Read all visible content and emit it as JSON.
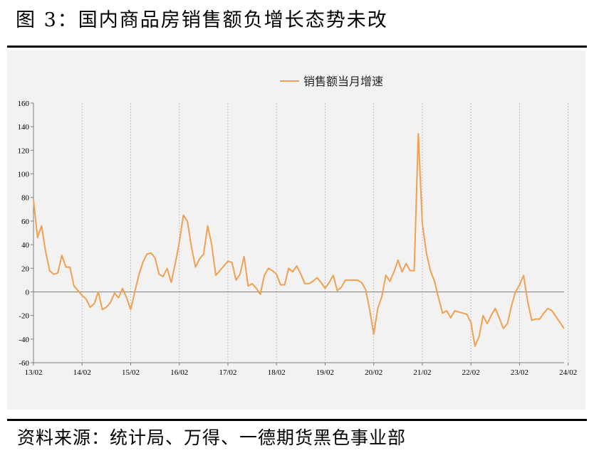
{
  "figure": {
    "title": "图 3：国内商品房销售额负增长态势未改",
    "source": "资料来源：统计局、万得、一德期货黑色事业部"
  },
  "colors": {
    "series": "#f0a050",
    "axis": "#7f7f7f",
    "grid": "#bfbfbf",
    "plot_background": "#f2f2f2"
  },
  "chart_data": {
    "type": "line",
    "title": "",
    "xlabel": "",
    "ylabel": "",
    "ylim": [
      -60,
      160
    ],
    "yticks": [
      -60,
      -40,
      -20,
      0,
      20,
      40,
      60,
      80,
      100,
      120,
      140,
      160
    ],
    "xticks": [
      "13/02",
      "14/02",
      "15/02",
      "16/02",
      "17/02",
      "18/02",
      "19/02",
      "20/02",
      "21/02",
      "22/02",
      "23/02",
      "24/02"
    ],
    "grid": "vertical dotted lines at x ticks",
    "legend": {
      "placement": "top-center",
      "entries": [
        "销售额当月增速"
      ]
    },
    "series": [
      {
        "name": "销售额当月增速",
        "start": "13/02",
        "frequency": "monthly (January/February combined)",
        "values": [
          78,
          46,
          56,
          34,
          18,
          15,
          16,
          31,
          21,
          21,
          5,
          1,
          -3,
          -6,
          -13,
          -10,
          0,
          -15,
          -13,
          -9,
          -1,
          -5,
          3,
          -5,
          -15,
          0,
          14,
          25,
          32,
          33,
          29,
          15,
          13,
          20,
          8,
          24,
          42,
          65,
          60,
          38,
          21,
          28,
          32,
          56,
          40,
          14,
          18,
          22,
          26,
          25,
          10,
          15,
          30,
          5,
          7,
          3,
          -2,
          14,
          20,
          18,
          15,
          6,
          6,
          20,
          17,
          22,
          15,
          7,
          7,
          9,
          12,
          8,
          3,
          8,
          14,
          1,
          4,
          10,
          10,
          10,
          10,
          8,
          2,
          -15,
          -36,
          -14,
          -4,
          14,
          9,
          17,
          27,
          17,
          24,
          18,
          18,
          134,
          58,
          33,
          18,
          9,
          -5,
          -18,
          -16,
          -22,
          -16,
          -17,
          -18,
          -19,
          -26,
          -46,
          -38,
          -20,
          -27,
          -20,
          -14,
          -22,
          -31,
          -27,
          -12,
          0,
          6,
          14,
          -8,
          -24,
          -23,
          -23,
          -18,
          -14,
          -16,
          -21,
          -26,
          -31
        ]
      }
    ]
  }
}
